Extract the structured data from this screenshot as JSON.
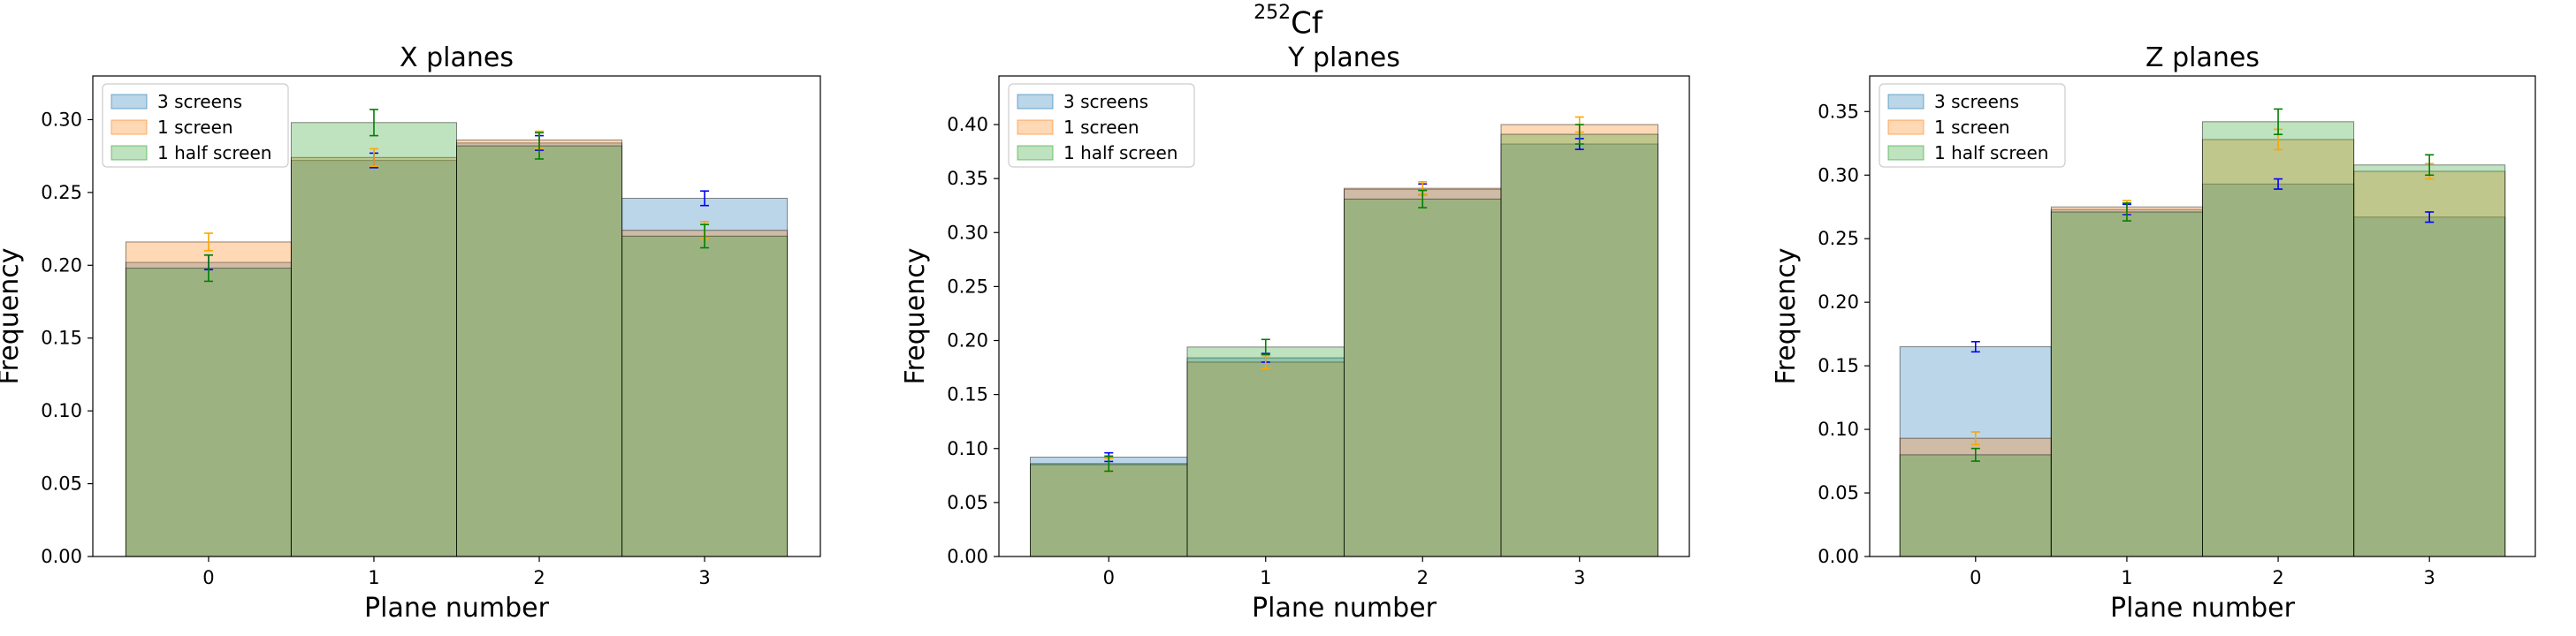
{
  "figure": {
    "suptitle_sup": "252",
    "suptitle_main": "Cf"
  },
  "colors": {
    "3 screens": "#1f77b4",
    "1 screen": "#ff7f0e",
    "1 half screen": "#2ca02c"
  },
  "chart_data": [
    {
      "type": "bar",
      "title": "X planes",
      "xlabel": "Plane number",
      "ylabel": "Frequency",
      "categories": [
        "0",
        "1",
        "2",
        "3"
      ],
      "ylim": [
        0,
        0.33
      ],
      "yticks": [
        "0.00",
        "0.05",
        "0.10",
        "0.15",
        "0.20",
        "0.25",
        "0.30"
      ],
      "legend_position": "top-left",
      "grid": false,
      "series": [
        {
          "name": "3 screens",
          "values": [
            0.202,
            0.272,
            0.284,
            0.246
          ],
          "errors": [
            0.005,
            0.005,
            0.005,
            0.005
          ]
        },
        {
          "name": "1 screen",
          "values": [
            0.216,
            0.274,
            0.286,
            0.224
          ],
          "errors": [
            0.006,
            0.006,
            0.006,
            0.006
          ]
        },
        {
          "name": "1 half screen",
          "values": [
            0.198,
            0.298,
            0.282,
            0.22
          ],
          "errors": [
            0.009,
            0.009,
            0.009,
            0.008
          ]
        }
      ]
    },
    {
      "type": "bar",
      "title": "Y planes",
      "xlabel": "Plane number",
      "ylabel": "Frequency",
      "categories": [
        "0",
        "1",
        "2",
        "3"
      ],
      "ylim": [
        0,
        0.445
      ],
      "yticks": [
        "0.00",
        "0.05",
        "0.10",
        "0.15",
        "0.20",
        "0.25",
        "0.30",
        "0.35",
        "0.40"
      ],
      "legend_position": "top-left",
      "grid": false,
      "series": [
        {
          "name": "3 screens",
          "values": [
            0.092,
            0.184,
            0.34,
            0.382
          ],
          "errors": [
            0.004,
            0.004,
            0.005,
            0.005
          ]
        },
        {
          "name": "1 screen",
          "values": [
            0.085,
            0.18,
            0.341,
            0.4
          ],
          "errors": [
            0.006,
            0.006,
            0.006,
            0.007
          ]
        },
        {
          "name": "1 half screen",
          "values": [
            0.086,
            0.194,
            0.331,
            0.391
          ],
          "errors": [
            0.007,
            0.007,
            0.008,
            0.009
          ]
        }
      ]
    },
    {
      "type": "bar",
      "title": "Z planes",
      "xlabel": "Plane number",
      "ylabel": "Frequency",
      "categories": [
        "0",
        "1",
        "2",
        "3"
      ],
      "ylim": [
        0,
        0.378
      ],
      "yticks": [
        "0.00",
        "0.05",
        "0.10",
        "0.15",
        "0.20",
        "0.25",
        "0.30",
        "0.35"
      ],
      "legend_position": "top-left",
      "grid": false,
      "series": [
        {
          "name": "3 screens",
          "values": [
            0.165,
            0.273,
            0.293,
            0.267
          ],
          "errors": [
            0.004,
            0.004,
            0.004,
            0.004
          ]
        },
        {
          "name": "1 screen",
          "values": [
            0.093,
            0.275,
            0.328,
            0.303
          ],
          "errors": [
            0.005,
            0.005,
            0.008,
            0.006
          ]
        },
        {
          "name": "1 half screen",
          "values": [
            0.08,
            0.271,
            0.342,
            0.308
          ],
          "errors": [
            0.005,
            0.007,
            0.01,
            0.008
          ]
        }
      ]
    }
  ]
}
